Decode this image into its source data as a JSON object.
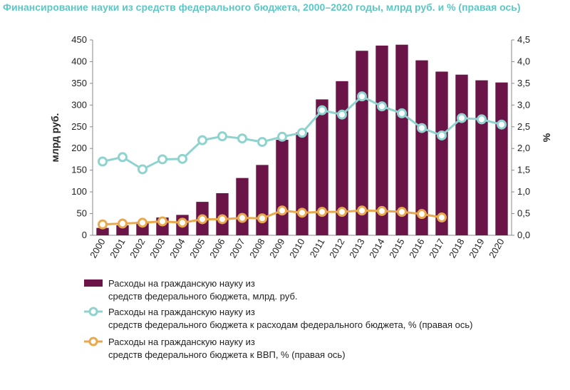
{
  "title": "Финансирование науки из средств федерального бюджета, 2000–2020 годы, млрд руб. и % (правая ось)",
  "colors": {
    "bar": "#6b1448",
    "line_budget": "#8fd3cf",
    "line_gdp": "#e8a94e",
    "title": "#5cc7c4"
  },
  "chart_data": {
    "type": "bar+line",
    "categories": [
      "2000",
      "2001",
      "2002",
      "2003",
      "2004",
      "2005",
      "2006",
      "2007",
      "2008",
      "2009",
      "2010",
      "2011",
      "2012",
      "2013",
      "2014",
      "2015",
      "2016",
      "2017",
      "2018",
      "2019",
      "2020"
    ],
    "ylabel": "млрд руб.",
    "y2label": "%",
    "ylim": [
      0,
      450
    ],
    "y2lim": [
      0,
      4.5
    ],
    "yticks": [
      "0",
      "50",
      "100",
      "150",
      "200",
      "250",
      "300",
      "350",
      "400",
      "450"
    ],
    "y2ticks": [
      "0,0",
      "0,5",
      "1,0",
      "1,5",
      "2,0",
      "2,5",
      "3,0",
      "3,5",
      "4,0",
      "4,5"
    ],
    "legend_position": "bottom",
    "series": [
      {
        "name": "Расходы  на гражданскую науку из средств федерального бюджета, млрд. руб.",
        "name_lines": [
          "Расходы  на гражданскую науку из",
          "средств федерального бюджета, млрд. руб."
        ],
        "type": "bar",
        "axis": "left",
        "values": [
          17,
          23,
          31,
          41,
          47,
          77,
          97,
          132,
          162,
          220,
          237,
          313,
          355,
          425,
          437,
          439,
          403,
          377,
          370,
          357,
          352
        ]
      },
      {
        "name": "Расходы  на гражданскую науку из средств федерального бюджета к расходам федерального бюджета, % (правая ось)",
        "name_lines": [
          "Расходы  на гражданскую науку из",
          "средств федерального бюджета к расходам федерального бюджета, % (правая ось)"
        ],
        "type": "line",
        "axis": "right",
        "values": [
          1.7,
          1.8,
          1.52,
          1.75,
          1.76,
          2.19,
          2.28,
          2.23,
          2.15,
          2.27,
          2.36,
          2.88,
          2.78,
          3.2,
          2.97,
          2.81,
          2.47,
          2.3,
          2.7,
          2.67,
          2.55
        ]
      },
      {
        "name": "Расходы  на гражданскую науку из средств федерального бюджета к ВВП, % (правая ось)",
        "name_lines": [
          "Расходы  на гражданскую науку из",
          "средств федерального бюджета к ВВП, % (правая ось)"
        ],
        "type": "line",
        "axis": "right",
        "values": [
          0.25,
          0.27,
          0.29,
          0.32,
          0.29,
          0.37,
          0.37,
          0.4,
          0.39,
          0.57,
          0.52,
          0.54,
          0.54,
          0.57,
          0.56,
          0.54,
          0.49,
          0.41,
          null,
          null,
          null
        ]
      }
    ]
  }
}
